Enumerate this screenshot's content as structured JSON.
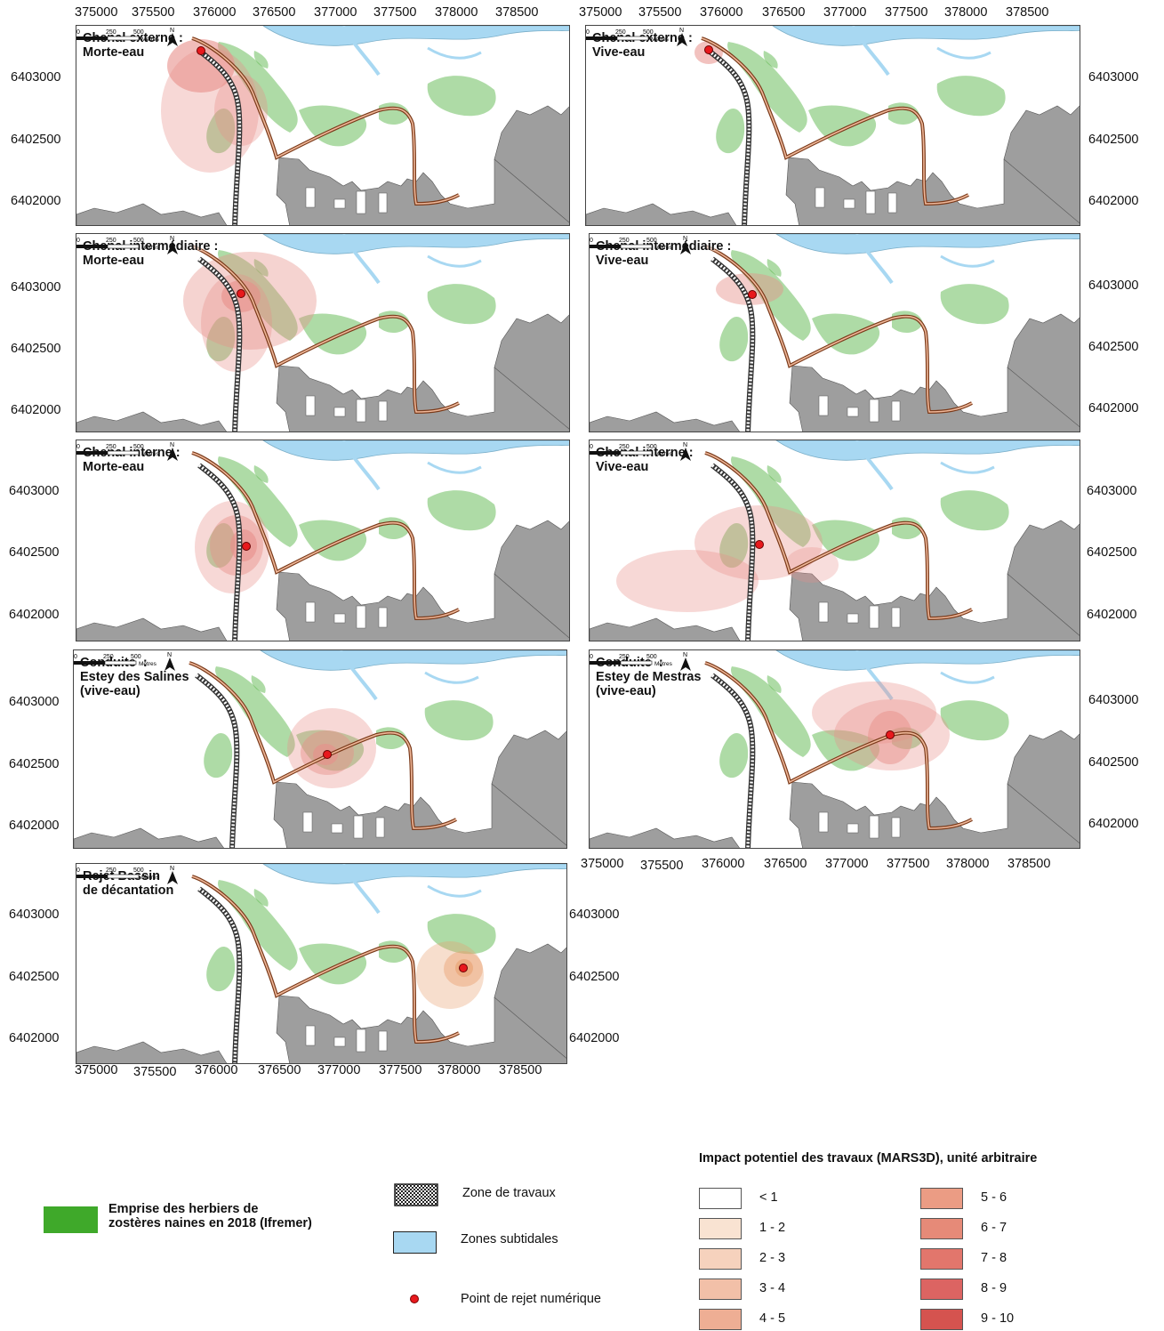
{
  "x_ticks": [
    "375000",
    "375500",
    "376000",
    "376500",
    "377000",
    "377500",
    "378000",
    "378500"
  ],
  "y_ticks": [
    "6403000",
    "6402500",
    "6402000"
  ],
  "panels": [
    {
      "title": "Chenal externe :\nMorte-eau"
    },
    {
      "title": "Chenal externe :\nVive-eau"
    },
    {
      "title": "Chenal intermédiaire :\nMorte-eau"
    },
    {
      "title": "Chenal intermédiaire :\nVive-eau"
    },
    {
      "title": "Chenal interne :\nMorte-eau"
    },
    {
      "title": "Chenal interne :\nVive-eau"
    },
    {
      "title": "Conduite  :\nEstey des Salines\n(vive-eau)"
    },
    {
      "title": "Conduite  :\nEstey de Mestras\n(vive-eau)"
    },
    {
      "title": "Rejet Bassin\nde décantation"
    }
  ],
  "scale": {
    "t0": "0",
    "t1": "250",
    "t2": "500",
    "unit": "Mètres",
    "north": "N"
  },
  "legend": {
    "herbiers": "Emprise des herbiers de\nzostères naines en 2018 (Ifremer)",
    "travaux": "Zone de travaux",
    "subtidales": "Zones subtidales",
    "rejet": "Point de rejet numérique",
    "impact_title": "Impact potentiel des travaux (MARS3D), unité arbitraire",
    "classes": [
      "< 1",
      "1 - 2",
      "2 - 3",
      "3 - 4",
      "4 - 5",
      "5 - 6",
      "6 - 7",
      "7 - 8",
      "8 - 9",
      "9 - 10"
    ],
    "class_colors": [
      "#ffffff",
      "#f9e3d2",
      "#f6d2bd",
      "#f2c0a8",
      "#eeae94",
      "#eb9c84",
      "#e68a78",
      "#e2766c",
      "#dc6462",
      "#d5534f"
    ],
    "herbier_color": "#3fa92a",
    "subtidal_color": "#a8d8f2",
    "point_color": "#e8191d"
  }
}
